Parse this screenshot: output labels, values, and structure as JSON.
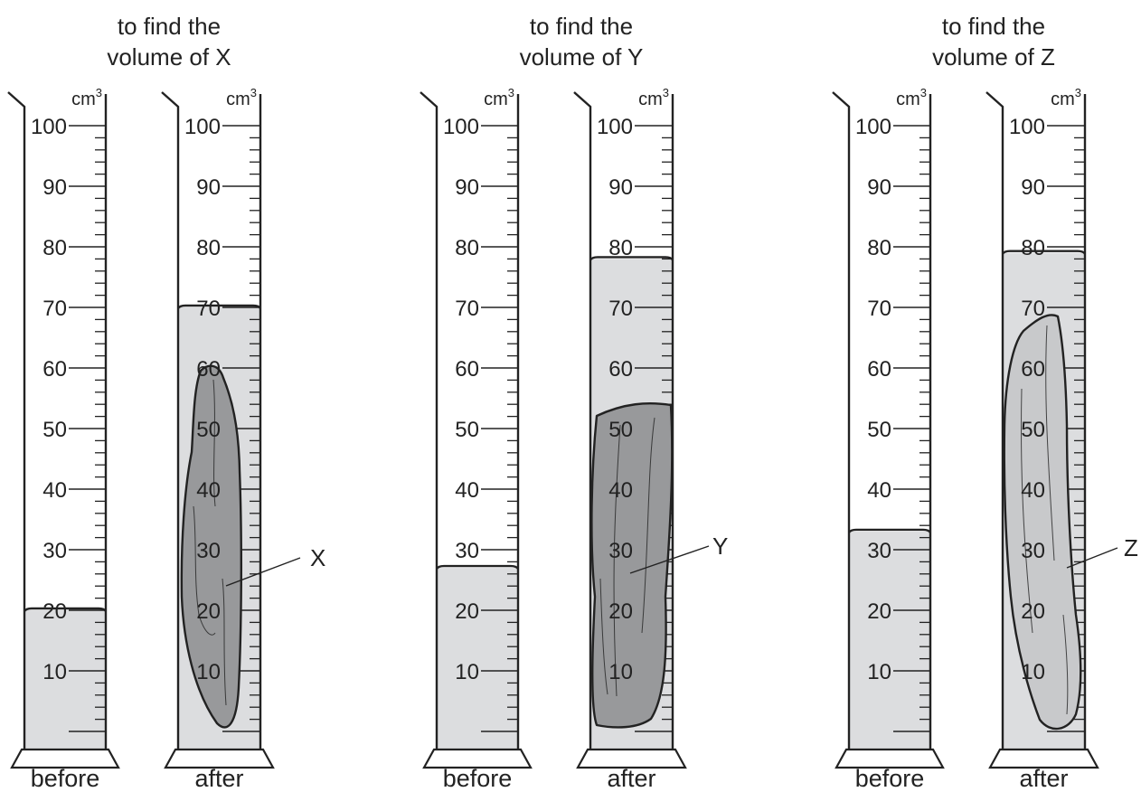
{
  "experiments": [
    {
      "title_line1": "to find the",
      "title_line2": "volume of X",
      "before": {
        "caption": "before",
        "unit": "cm",
        "unit_exponent": "3",
        "water_level": 20
      },
      "after": {
        "caption": "after",
        "unit": "cm",
        "unit_exponent": "3",
        "water_level": 70
      },
      "object": {
        "label": "X",
        "top_reading": 60,
        "bottom_reading": 4
      }
    },
    {
      "title_line1": "to find the",
      "title_line2": "volume of Y",
      "before": {
        "caption": "before",
        "unit": "cm",
        "unit_exponent": "3",
        "water_level": 27
      },
      "after": {
        "caption": "after",
        "unit": "cm",
        "unit_exponent": "3",
        "water_level": 78
      },
      "object": {
        "label": "Y",
        "top_reading": 54,
        "bottom_reading": 4
      }
    },
    {
      "title_line1": "to find the",
      "title_line2": "volume of Z",
      "before": {
        "caption": "before",
        "unit": "cm",
        "unit_exponent": "3",
        "water_level": 33
      },
      "after": {
        "caption": "after",
        "unit": "cm",
        "unit_exponent": "3",
        "water_level": 79
      },
      "object": {
        "label": "Z",
        "top_reading": 69,
        "bottom_reading": 4
      }
    }
  ],
  "scale": {
    "min": 0,
    "max": 100,
    "labelled_ticks": [
      10,
      20,
      30,
      40,
      50,
      60,
      70,
      80,
      90,
      100
    ]
  },
  "colors": {
    "water": "#dcdddf",
    "outline": "#222222",
    "rock_dark": "#98999b",
    "rock_light": "#c8c9cb"
  }
}
